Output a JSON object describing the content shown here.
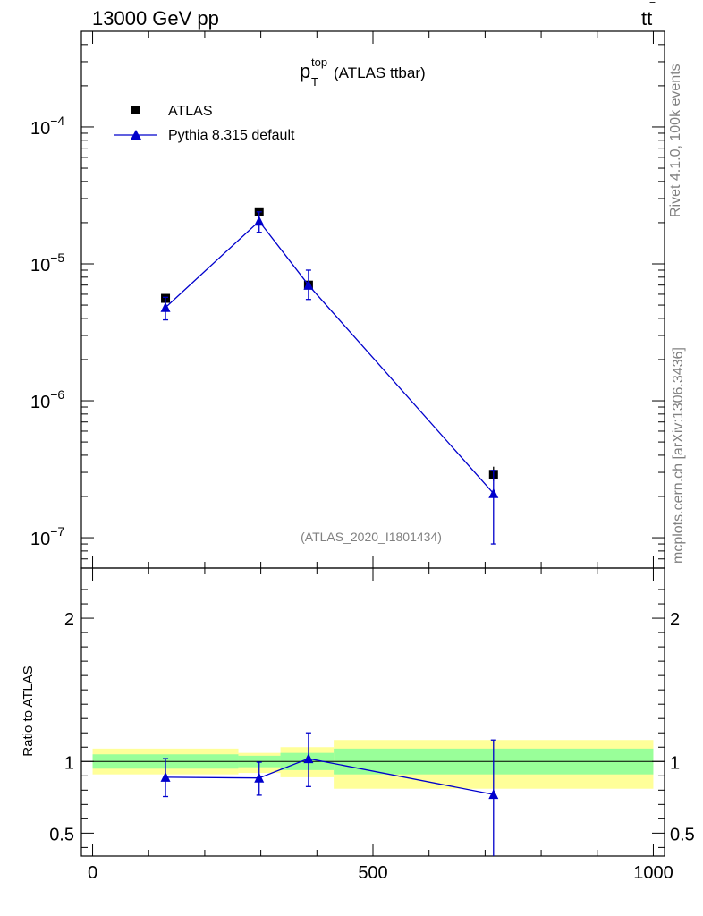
{
  "header": {
    "left": "13000 GeV pp",
    "right_process": "tt",
    "right_process_bar": "‾"
  },
  "side_labels": {
    "rivet": "Rivet 4.1.0,  100k events",
    "mcplots": "mcplots.cern.ch [arXiv:1306.3436]"
  },
  "chart_data": [
    {
      "type": "scatter",
      "panel": "main",
      "title": {
        "main": "p",
        "sub": "T",
        "sup": "top",
        "rest": " (ATLAS ttbar)"
      },
      "analysis_tag": "(ATLAS_2020_I1801434)",
      "yscale": "log",
      "ylim": [
        6e-08,
        0.0005
      ],
      "xlim": [
        -20,
        1020
      ],
      "y_ticks": [
        {
          "value": 0.0001,
          "mant": "10",
          "exp": "−4"
        },
        {
          "value": 1e-05,
          "mant": "10",
          "exp": "−5"
        },
        {
          "value": 1e-06,
          "mant": "10",
          "exp": "−6"
        },
        {
          "value": 1e-07,
          "mant": "10",
          "exp": "−7"
        }
      ],
      "legend": {
        "position": "top-left",
        "entries": [
          {
            "label": "ATLAS",
            "marker": "square",
            "color": "#000000"
          },
          {
            "label": "Pythia 8.315 default",
            "marker": "triangle",
            "color": "#0000cc"
          }
        ]
      },
      "series": [
        {
          "name": "ATLAS",
          "color": "#000000",
          "x": [
            130,
            297,
            385,
            715
          ],
          "y": [
            5.6e-06,
            2.4e-05,
            7e-06,
            2.9e-07
          ],
          "y_lo": [
            5.4e-06,
            2.3e-05,
            6.7e-06,
            2.6e-07
          ],
          "y_hi": [
            5.8e-06,
            2.5e-05,
            7.3e-06,
            3.3e-07
          ]
        },
        {
          "name": "Pythia 8.315 default",
          "color": "#0000cc",
          "x": [
            130,
            297,
            385,
            715
          ],
          "y": [
            4.8e-06,
            2.05e-05,
            7e-06,
            2.1e-07
          ],
          "y_lo": [
            3.9e-06,
            1.7e-05,
            5.5e-06,
            9e-08
          ],
          "y_hi": [
            5.7e-06,
            2.4e-05,
            9e-06,
            3.1e-07
          ]
        }
      ]
    },
    {
      "type": "scatter",
      "panel": "ratio",
      "ylabel": "Ratio to ATLAS",
      "ylim": [
        0.34,
        2.35
      ],
      "xlim": [
        -20,
        1020
      ],
      "y_ticks": [
        {
          "value": 2,
          "label": "2"
        },
        {
          "value": 1,
          "label": "1"
        },
        {
          "value": 0.5,
          "label": "0.5"
        }
      ],
      "x_ticks": [
        {
          "value": 0,
          "label": "0"
        },
        {
          "value": 500,
          "label": "500"
        },
        {
          "value": 1000,
          "label": "1000"
        }
      ],
      "bands": [
        {
          "x0": 0,
          "x1": 260,
          "outer": [
            0.91,
            1.09
          ],
          "inner": [
            0.95,
            1.05
          ]
        },
        {
          "x0": 260,
          "x1": 335,
          "outer": [
            0.92,
            1.06
          ],
          "inner": [
            0.96,
            1.04
          ]
        },
        {
          "x0": 335,
          "x1": 430,
          "outer": [
            0.89,
            1.1
          ],
          "inner": [
            0.94,
            1.06
          ]
        },
        {
          "x0": 430,
          "x1": 1000,
          "outer": [
            0.81,
            1.15
          ],
          "inner": [
            0.91,
            1.09
          ]
        }
      ],
      "band_colors": {
        "outer": "#ffff99",
        "inner": "#99ff99"
      },
      "series": [
        {
          "name": "Pythia 8.315 default",
          "color": "#0000cc",
          "x": [
            130,
            297,
            385,
            715
          ],
          "y": [
            0.89,
            0.885,
            1.02,
            0.77
          ],
          "y_lo": [
            0.755,
            0.765,
            0.825,
            0.34
          ],
          "y_hi": [
            1.02,
            0.995,
            1.2,
            1.15
          ]
        }
      ]
    }
  ]
}
